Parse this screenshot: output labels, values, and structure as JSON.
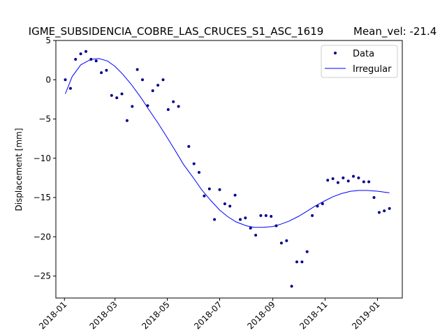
{
  "chart_data": {
    "type": "scatter",
    "title": "IGME_SUBSIDENCIA_COBRE_LAS_CRUCES_S1_ASC_1619",
    "title_right": "Mean_vel: -21.4",
    "xlabel": "",
    "ylabel": "Displacement [mm]",
    "x_range": [
      "2017-12-22",
      "2019-01-30"
    ],
    "ylim": [
      -27.8,
      5.0
    ],
    "yticks": [
      5,
      0,
      -5,
      -10,
      -15,
      -20,
      -25
    ],
    "ytick_labels": [
      "5",
      "0",
      "−5",
      "−10",
      "−15",
      "−20",
      "−25"
    ],
    "xticks": [
      "2018-01-01",
      "2018-03-01",
      "2018-05-01",
      "2018-07-01",
      "2018-09-01",
      "2018-11-01",
      "2019-01-01"
    ],
    "xtick_labels": [
      "2018-01",
      "2018-03",
      "2018-05",
      "2018-07",
      "2018-09",
      "2018-11",
      "2019-01"
    ],
    "grid": false,
    "legend_position": "top-right",
    "series": [
      {
        "name": "Data",
        "style": "points",
        "color": "#00008b",
        "points": [
          [
            "2018-01-02",
            0.0
          ],
          [
            "2018-01-08",
            -1.1
          ],
          [
            "2018-01-14",
            2.6
          ],
          [
            "2018-01-20",
            3.3
          ],
          [
            "2018-01-26",
            3.6
          ],
          [
            "2018-02-01",
            2.6
          ],
          [
            "2018-02-07",
            2.4
          ],
          [
            "2018-02-13",
            0.9
          ],
          [
            "2018-02-19",
            1.2
          ],
          [
            "2018-02-25",
            -2.0
          ],
          [
            "2018-03-03",
            -2.3
          ],
          [
            "2018-03-09",
            -1.8
          ],
          [
            "2018-03-15",
            -5.2
          ],
          [
            "2018-03-21",
            -3.4
          ],
          [
            "2018-03-27",
            1.3
          ],
          [
            "2018-04-02",
            0.0
          ],
          [
            "2018-04-08",
            -3.3
          ],
          [
            "2018-04-14",
            -1.4
          ],
          [
            "2018-04-20",
            -0.7
          ],
          [
            "2018-04-26",
            0.0
          ],
          [
            "2018-05-02",
            -3.8
          ],
          [
            "2018-05-08",
            -2.8
          ],
          [
            "2018-05-14",
            -3.4
          ],
          [
            "2018-05-26",
            -8.5
          ],
          [
            "2018-06-01",
            -10.7
          ],
          [
            "2018-06-07",
            -11.8
          ],
          [
            "2018-06-13",
            -14.8
          ],
          [
            "2018-06-19",
            -13.9
          ],
          [
            "2018-06-25",
            -17.8
          ],
          [
            "2018-07-01",
            -14.0
          ],
          [
            "2018-07-07",
            -15.8
          ],
          [
            "2018-07-13",
            -16.1
          ],
          [
            "2018-07-19",
            -14.7
          ],
          [
            "2018-07-25",
            -17.8
          ],
          [
            "2018-07-31",
            -17.6
          ],
          [
            "2018-08-06",
            -18.9
          ],
          [
            "2018-08-12",
            -19.8
          ],
          [
            "2018-08-18",
            -17.3
          ],
          [
            "2018-08-24",
            -17.3
          ],
          [
            "2018-08-30",
            -17.4
          ],
          [
            "2018-09-05",
            -18.6
          ],
          [
            "2018-09-11",
            -20.8
          ],
          [
            "2018-09-17",
            -20.5
          ],
          [
            "2018-09-23",
            -26.3
          ],
          [
            "2018-09-29",
            -23.2
          ],
          [
            "2018-10-05",
            -23.2
          ],
          [
            "2018-10-11",
            -21.9
          ],
          [
            "2018-10-17",
            -17.3
          ],
          [
            "2018-10-23",
            -16.1
          ],
          [
            "2018-10-29",
            -15.8
          ],
          [
            "2018-11-04",
            -12.8
          ],
          [
            "2018-11-10",
            -12.6
          ],
          [
            "2018-11-16",
            -13.1
          ],
          [
            "2018-11-22",
            -12.5
          ],
          [
            "2018-11-28",
            -12.9
          ],
          [
            "2018-12-04",
            -12.3
          ],
          [
            "2018-12-10",
            -12.5
          ],
          [
            "2018-12-16",
            -13.0
          ],
          [
            "2018-12-22",
            -13.0
          ],
          [
            "2018-12-28",
            -15.0
          ],
          [
            "2019-01-03",
            -16.9
          ],
          [
            "2019-01-09",
            -16.7
          ],
          [
            "2019-01-15",
            -16.4
          ]
        ]
      },
      {
        "name": "Irregular",
        "style": "line",
        "color": "#0000ff",
        "points": [
          [
            "2018-01-02",
            -1.8
          ],
          [
            "2018-01-10",
            0.4
          ],
          [
            "2018-01-20",
            1.9
          ],
          [
            "2018-02-01",
            2.6
          ],
          [
            "2018-02-10",
            2.7
          ],
          [
            "2018-02-20",
            2.4
          ],
          [
            "2018-03-01",
            1.7
          ],
          [
            "2018-03-10",
            0.7
          ],
          [
            "2018-03-20",
            -0.6
          ],
          [
            "2018-04-01",
            -2.4
          ],
          [
            "2018-04-10",
            -3.9
          ],
          [
            "2018-04-20",
            -5.5
          ],
          [
            "2018-05-01",
            -7.4
          ],
          [
            "2018-05-10",
            -9.0
          ],
          [
            "2018-05-20",
            -10.8
          ],
          [
            "2018-06-01",
            -12.6
          ],
          [
            "2018-06-10",
            -14.0
          ],
          [
            "2018-06-20",
            -15.3
          ],
          [
            "2018-07-01",
            -16.6
          ],
          [
            "2018-07-10",
            -17.4
          ],
          [
            "2018-07-20",
            -18.1
          ],
          [
            "2018-08-01",
            -18.6
          ],
          [
            "2018-08-10",
            -18.8
          ],
          [
            "2018-08-20",
            -18.8
          ],
          [
            "2018-09-01",
            -18.7
          ],
          [
            "2018-09-10",
            -18.4
          ],
          [
            "2018-09-20",
            -18.0
          ],
          [
            "2018-10-01",
            -17.4
          ],
          [
            "2018-10-10",
            -16.8
          ],
          [
            "2018-10-20",
            -16.1
          ],
          [
            "2018-11-01",
            -15.4
          ],
          [
            "2018-11-10",
            -14.9
          ],
          [
            "2018-11-20",
            -14.5
          ],
          [
            "2018-12-01",
            -14.2
          ],
          [
            "2018-12-10",
            -14.1
          ],
          [
            "2018-12-20",
            -14.1
          ],
          [
            "2019-01-01",
            -14.2
          ],
          [
            "2019-01-08",
            -14.3
          ],
          [
            "2019-01-15",
            -14.4
          ]
        ]
      }
    ]
  }
}
